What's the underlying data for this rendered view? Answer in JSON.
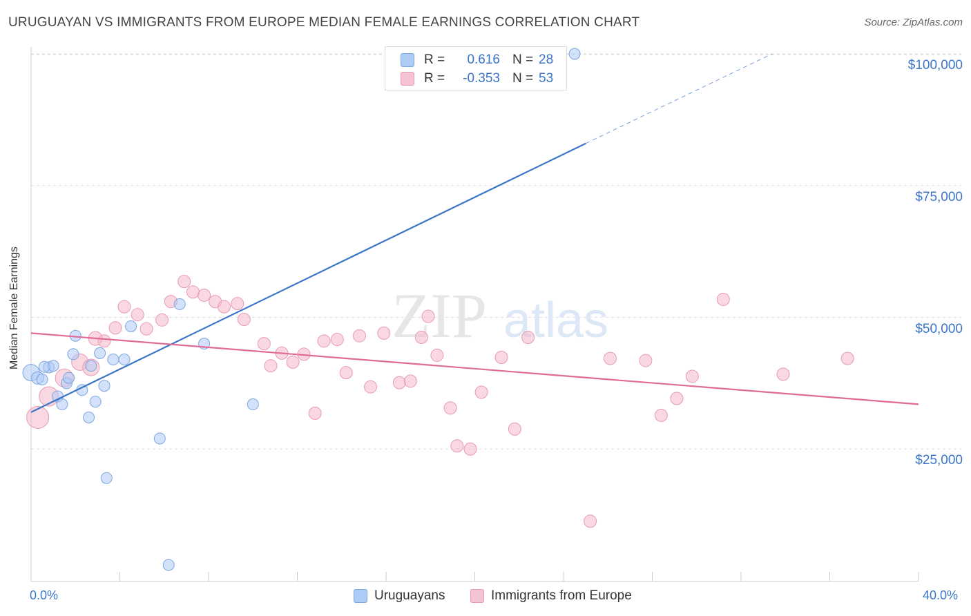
{
  "title": "URUGUAYAN VS IMMIGRANTS FROM EUROPE MEDIAN FEMALE EARNINGS CORRELATION CHART",
  "source": "Source: ZipAtlas.com",
  "watermark": {
    "zip": "ZIP",
    "atlas": "atlas"
  },
  "colors": {
    "blue": "#3b75c9",
    "blue_fill": "#aecbf5",
    "pink": "#e06b96",
    "pink_fill": "#f5b8cb",
    "grid": "#dddddd"
  },
  "legend": {
    "rows": [
      {
        "r_label": "R =",
        "r_value": "0.616",
        "n_label": "N =",
        "n_value": "28"
      },
      {
        "r_label": "R =",
        "r_value": "-0.353",
        "n_label": "N =",
        "n_value": "53"
      }
    ]
  },
  "bottom_legend": {
    "series1": "Uruguayans",
    "series2": "Immigrants from Europe"
  },
  "axis": {
    "y_title": "Median Female Earnings",
    "x_min_label": "0.0%",
    "x_max_label": "40.0%",
    "y_ticks": [
      "$100,000",
      "$75,000",
      "$50,000",
      "$25,000"
    ]
  },
  "chart_data": {
    "type": "scatter",
    "title": "URUGUAYAN VS IMMIGRANTS FROM EUROPE MEDIAN FEMALE EARNINGS CORRELATION CHART",
    "xlabel": "",
    "ylabel": "Median Female Earnings",
    "xlim": [
      0,
      40
    ],
    "ylim": [
      0,
      102000
    ],
    "y_tick_values": [
      100000,
      75000,
      50000,
      25000
    ],
    "series": [
      {
        "name": "Uruguayans",
        "color": "blue",
        "trend": {
          "x0": 0,
          "y0": 32000,
          "x1": 25,
          "y1": 83000,
          "dash_to_x": 33.4,
          "dash_to_y": 100000
        },
        "points": [
          {
            "x": 0.0,
            "y": 39500,
            "s": 12
          },
          {
            "x": 0.3,
            "y": 38500,
            "s": 9
          },
          {
            "x": 0.5,
            "y": 38200,
            "s": 8
          },
          {
            "x": 0.8,
            "y": 40500,
            "s": 8
          },
          {
            "x": 1.0,
            "y": 40800,
            "s": 8
          },
          {
            "x": 1.2,
            "y": 35000,
            "s": 8
          },
          {
            "x": 1.4,
            "y": 33500,
            "s": 8
          },
          {
            "x": 1.6,
            "y": 37500,
            "s": 8
          },
          {
            "x": 1.7,
            "y": 38500,
            "s": 8
          },
          {
            "x": 2.0,
            "y": 46500,
            "s": 8
          },
          {
            "x": 1.9,
            "y": 43000,
            "s": 8
          },
          {
            "x": 2.3,
            "y": 36200,
            "s": 8
          },
          {
            "x": 2.6,
            "y": 31000,
            "s": 8
          },
          {
            "x": 2.7,
            "y": 40800,
            "s": 8
          },
          {
            "x": 2.9,
            "y": 34000,
            "s": 8
          },
          {
            "x": 3.1,
            "y": 43200,
            "s": 8
          },
          {
            "x": 3.3,
            "y": 37000,
            "s": 8
          },
          {
            "x": 3.4,
            "y": 19500,
            "s": 8
          },
          {
            "x": 3.7,
            "y": 42000,
            "s": 8
          },
          {
            "x": 4.2,
            "y": 42000,
            "s": 8
          },
          {
            "x": 4.5,
            "y": 48300,
            "s": 8
          },
          {
            "x": 5.8,
            "y": 27000,
            "s": 8
          },
          {
            "x": 6.2,
            "y": 3000,
            "s": 8
          },
          {
            "x": 6.7,
            "y": 52500,
            "s": 8
          },
          {
            "x": 7.8,
            "y": 45000,
            "s": 8
          },
          {
            "x": 10.0,
            "y": 33500,
            "s": 8
          },
          {
            "x": 24.5,
            "y": 100000,
            "s": 8
          },
          {
            "x": 0.6,
            "y": 40600,
            "s": 8
          }
        ]
      },
      {
        "name": "Immigrants from Europe",
        "color": "pink",
        "trend": {
          "x0": 0,
          "y0": 47000,
          "x1": 40,
          "y1": 33500
        },
        "points": [
          {
            "x": 0.3,
            "y": 31000,
            "s": 16
          },
          {
            "x": 0.8,
            "y": 35000,
            "s": 14
          },
          {
            "x": 1.5,
            "y": 38500,
            "s": 13
          },
          {
            "x": 2.2,
            "y": 41500,
            "s": 12
          },
          {
            "x": 2.7,
            "y": 40500,
            "s": 12
          },
          {
            "x": 2.9,
            "y": 46000,
            "s": 10
          },
          {
            "x": 3.3,
            "y": 45500,
            "s": 9
          },
          {
            "x": 3.8,
            "y": 48000,
            "s": 9
          },
          {
            "x": 4.2,
            "y": 52000,
            "s": 9
          },
          {
            "x": 4.8,
            "y": 50500,
            "s": 9
          },
          {
            "x": 5.2,
            "y": 47800,
            "s": 9
          },
          {
            "x": 5.9,
            "y": 49500,
            "s": 9
          },
          {
            "x": 6.3,
            "y": 53000,
            "s": 9
          },
          {
            "x": 6.9,
            "y": 56800,
            "s": 9
          },
          {
            "x": 7.3,
            "y": 54800,
            "s": 9
          },
          {
            "x": 7.8,
            "y": 54200,
            "s": 9
          },
          {
            "x": 8.3,
            "y": 53000,
            "s": 9
          },
          {
            "x": 8.7,
            "y": 52000,
            "s": 9
          },
          {
            "x": 9.3,
            "y": 52600,
            "s": 9
          },
          {
            "x": 9.6,
            "y": 49600,
            "s": 9
          },
          {
            "x": 10.5,
            "y": 45000,
            "s": 9
          },
          {
            "x": 10.8,
            "y": 40800,
            "s": 9
          },
          {
            "x": 11.3,
            "y": 43200,
            "s": 9
          },
          {
            "x": 11.8,
            "y": 41500,
            "s": 9
          },
          {
            "x": 12.3,
            "y": 43000,
            "s": 9
          },
          {
            "x": 12.8,
            "y": 31800,
            "s": 9
          },
          {
            "x": 13.2,
            "y": 45500,
            "s": 9
          },
          {
            "x": 13.8,
            "y": 45800,
            "s": 9
          },
          {
            "x": 14.2,
            "y": 39500,
            "s": 9
          },
          {
            "x": 14.8,
            "y": 46500,
            "s": 9
          },
          {
            "x": 15.3,
            "y": 36800,
            "s": 9
          },
          {
            "x": 15.9,
            "y": 47000,
            "s": 9
          },
          {
            "x": 16.6,
            "y": 37600,
            "s": 9
          },
          {
            "x": 17.1,
            "y": 37900,
            "s": 9
          },
          {
            "x": 17.6,
            "y": 46200,
            "s": 9
          },
          {
            "x": 17.9,
            "y": 50200,
            "s": 9
          },
          {
            "x": 18.3,
            "y": 42800,
            "s": 9
          },
          {
            "x": 18.9,
            "y": 32800,
            "s": 9
          },
          {
            "x": 19.2,
            "y": 25600,
            "s": 9
          },
          {
            "x": 19.8,
            "y": 25000,
            "s": 9
          },
          {
            "x": 20.3,
            "y": 35800,
            "s": 9
          },
          {
            "x": 21.2,
            "y": 42400,
            "s": 9
          },
          {
            "x": 21.8,
            "y": 28800,
            "s": 9
          },
          {
            "x": 22.4,
            "y": 46200,
            "s": 9
          },
          {
            "x": 25.2,
            "y": 11300,
            "s": 9
          },
          {
            "x": 26.1,
            "y": 42200,
            "s": 9
          },
          {
            "x": 27.7,
            "y": 41800,
            "s": 9
          },
          {
            "x": 28.4,
            "y": 31400,
            "s": 9
          },
          {
            "x": 29.1,
            "y": 34600,
            "s": 9
          },
          {
            "x": 29.8,
            "y": 38800,
            "s": 9
          },
          {
            "x": 31.2,
            "y": 53400,
            "s": 9
          },
          {
            "x": 33.9,
            "y": 39200,
            "s": 9
          },
          {
            "x": 36.8,
            "y": 42200,
            "s": 9
          }
        ]
      }
    ]
  }
}
